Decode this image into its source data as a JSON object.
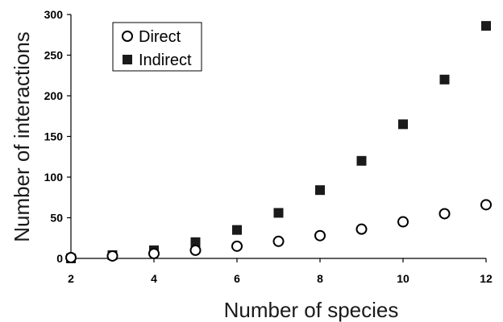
{
  "chart_data": {
    "type": "scatter",
    "xlabel": "Number of species",
    "ylabel": "Number of interactions",
    "xlim": [
      2,
      12
    ],
    "ylim": [
      0,
      300
    ],
    "xticks": [
      "2",
      "4",
      "6",
      "8",
      "10",
      "12"
    ],
    "yticks": [
      "0",
      "50",
      "100",
      "150",
      "200",
      "250",
      "300"
    ],
    "legend_position": "top-left",
    "grid": false,
    "series": [
      {
        "name": "Direct",
        "marker": "open-circle",
        "color": "#000000",
        "points": [
          {
            "x": 2,
            "y": 1
          },
          {
            "x": 3,
            "y": 3
          },
          {
            "x": 4,
            "y": 6
          },
          {
            "x": 5,
            "y": 10
          },
          {
            "x": 6,
            "y": 15
          },
          {
            "x": 7,
            "y": 21
          },
          {
            "x": 8,
            "y": 28
          },
          {
            "x": 9,
            "y": 36
          },
          {
            "x": 10,
            "y": 45
          },
          {
            "x": 11,
            "y": 55
          },
          {
            "x": 12,
            "y": 66
          }
        ]
      },
      {
        "name": "Indirect",
        "marker": "filled-square",
        "color": "#1a1a1a",
        "points": [
          {
            "x": 2,
            "y": 0
          },
          {
            "x": 3,
            "y": 4
          },
          {
            "x": 4,
            "y": 10
          },
          {
            "x": 5,
            "y": 20
          },
          {
            "x": 6,
            "y": 35
          },
          {
            "x": 7,
            "y": 56
          },
          {
            "x": 8,
            "y": 84
          },
          {
            "x": 9,
            "y": 120
          },
          {
            "x": 10,
            "y": 165
          },
          {
            "x": 11,
            "y": 220
          },
          {
            "x": 12,
            "y": 286
          }
        ]
      }
    ]
  }
}
